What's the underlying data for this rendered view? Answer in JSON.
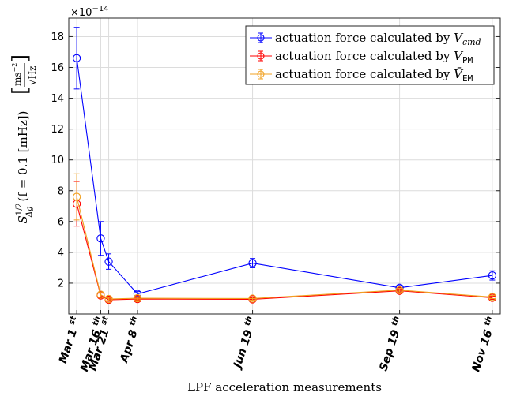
{
  "chart_data": {
    "type": "line",
    "x": [
      "2016-03-01",
      "2016-03-16",
      "2016-03-21",
      "2016-04-08",
      "2016-06-19",
      "2016-09-19",
      "2016-11-16"
    ],
    "x_tick_labels": [
      {
        "base": "Mar 1",
        "sup": "st"
      },
      {
        "base": "Mar 16",
        "sup": "th"
      },
      {
        "base": "Mar 21",
        "sup": "st"
      },
      {
        "base": "Apr 8",
        "sup": "th"
      },
      {
        "base": "Jun 19",
        "sup": "th"
      },
      {
        "base": "Sep 19",
        "sup": "th"
      },
      {
        "base": "Nov 16",
        "sup": "th"
      }
    ],
    "xlabel": "LPF acceleration measurements",
    "ylabel": {
      "prefix": "S",
      "sup": "1/2",
      "sub": "Δg",
      "arg": "(f = 0.1  [mHz])",
      "unit_num": "ms",
      "unit_num_exp": "−2",
      "unit_den": "√Hz"
    },
    "ylim": [
      0,
      19.2
    ],
    "yticks": [
      "2",
      "4",
      "6",
      "8",
      "10",
      "12",
      "14",
      "16",
      "18"
    ],
    "y_scale_label": {
      "base": "×10",
      "exp": "−14"
    },
    "grid": true,
    "legend_position": "top-right",
    "series": [
      {
        "name_prefix": "actuation force calculated by ",
        "name_symbol": "V",
        "name_sub": "cmd",
        "color": "#0000ff",
        "values": [
          16.6,
          4.9,
          3.4,
          1.3,
          3.3,
          1.7,
          2.5
        ],
        "errors": [
          2.0,
          1.1,
          0.5,
          0.15,
          0.3,
          0.15,
          0.3
        ]
      },
      {
        "name_prefix": "actuation force calculated by ",
        "name_symbol": "V",
        "name_sub": "PM",
        "color": "#ff0000",
        "values": [
          7.15,
          1.2,
          0.92,
          0.97,
          0.95,
          1.5,
          1.05
        ],
        "errors": [
          1.45,
          0.15,
          0.1,
          0.1,
          0.1,
          0.12,
          0.1
        ]
      },
      {
        "name_prefix": "actuation force calculated by ",
        "name_symbol": "V̄",
        "name_sub": "EM",
        "color": "#f0a020",
        "values": [
          7.6,
          1.25,
          0.97,
          1.02,
          1.0,
          1.55,
          1.1
        ],
        "errors": [
          1.5,
          0.15,
          0.1,
          0.1,
          0.1,
          0.12,
          0.1
        ]
      }
    ]
  }
}
